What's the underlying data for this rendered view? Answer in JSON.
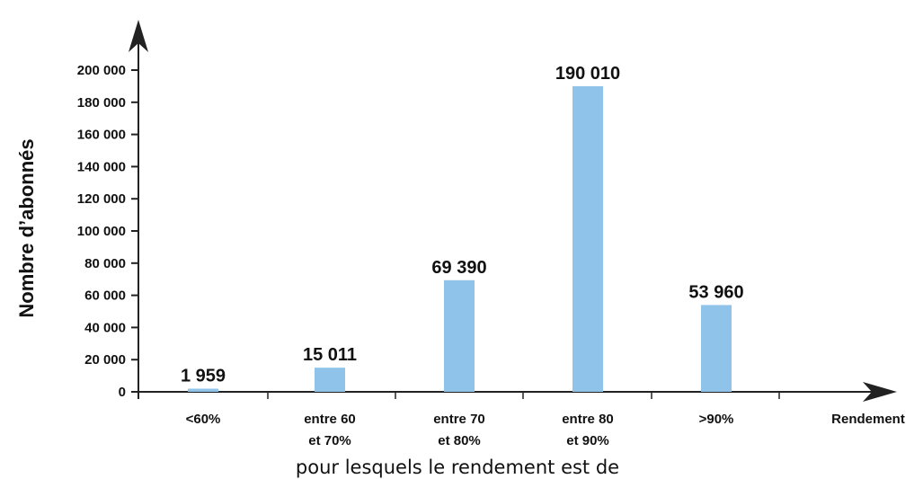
{
  "chart_data": {
    "type": "bar",
    "categories": [
      [
        "<60%"
      ],
      [
        "entre 60",
        "et 70%"
      ],
      [
        "entre 70",
        "et 80%"
      ],
      [
        "entre 80",
        "et 90%"
      ],
      [
        ">90%"
      ]
    ],
    "values": [
      1959,
      15011,
      69390,
      190010,
      53960
    ],
    "value_labels": [
      "1 959",
      "15 011",
      "69 390",
      "190 010",
      "53 960"
    ],
    "ylabel": "Nombre d’abonnés",
    "xaxis_end_label": "Rendement",
    "xlabel": "pour lesquels le rendement est de",
    "yticks": [
      0,
      20000,
      40000,
      60000,
      80000,
      100000,
      120000,
      140000,
      160000,
      180000,
      200000
    ],
    "ytick_labels": [
      "0",
      "20 000",
      "40 000",
      "60 000",
      "80 000",
      "100 000",
      "120 000",
      "140 000",
      "160 000",
      "180 000",
      "200 000"
    ],
    "ylim": [
      0,
      200000
    ],
    "grid": false,
    "legend": "none",
    "colors": {
      "bar": "#8fc3ea",
      "axis": "#222222",
      "text": "#111111"
    }
  }
}
